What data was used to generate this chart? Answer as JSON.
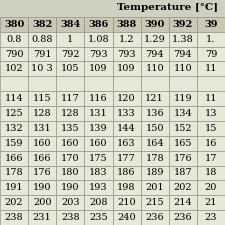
{
  "title": "Temperature [°C]",
  "header": [
    "380",
    "382",
    "384",
    "386",
    "388",
    "390",
    "392",
    "39"
  ],
  "rows": [
    [
      "0.8",
      "0.88",
      "1",
      "1.08",
      "1.2",
      "1.29",
      "1.38",
      "1."
    ],
    [
      "790",
      "791",
      "792",
      "793",
      "793",
      "794",
      "794",
      "79"
    ],
    [
      "102",
      "10 3",
      "105",
      "109",
      "109",
      "110",
      "110",
      "11"
    ],
    [
      "",
      "",
      "",
      "",
      "",
      "",
      "",
      ""
    ],
    [
      "114",
      "115",
      "117",
      "116",
      "120",
      "121",
      "119",
      "11"
    ],
    [
      "125",
      "128",
      "128",
      "131",
      "133",
      "136",
      "134",
      "13"
    ],
    [
      "132",
      "131",
      "135",
      "139",
      "144",
      "150",
      "152",
      "15"
    ],
    [
      "159",
      "160",
      "160",
      "160",
      "163",
      "164",
      "165",
      "16"
    ],
    [
      "166",
      "166",
      "170",
      "175",
      "177",
      "178",
      "176",
      "17"
    ],
    [
      "178",
      "176",
      "180",
      "183",
      "186",
      "189",
      "187",
      "18"
    ],
    [
      "191",
      "190",
      "190",
      "193",
      "198",
      "201",
      "202",
      "20"
    ],
    [
      "202",
      "200",
      "203",
      "208",
      "210",
      "215",
      "214",
      "21"
    ],
    [
      "238",
      "231",
      "238",
      "235",
      "240",
      "236",
      "236",
      "23"
    ]
  ],
  "bg_header": "#c8c8b4",
  "bg_body": "#e8e8d8",
  "bg_empty_row": "#e8e8d8",
  "border_color": "#888880",
  "text_color": "#000000",
  "title_fontsize": 7.5,
  "cell_fontsize": 7.0,
  "fig_bg": "#d0d0c0"
}
